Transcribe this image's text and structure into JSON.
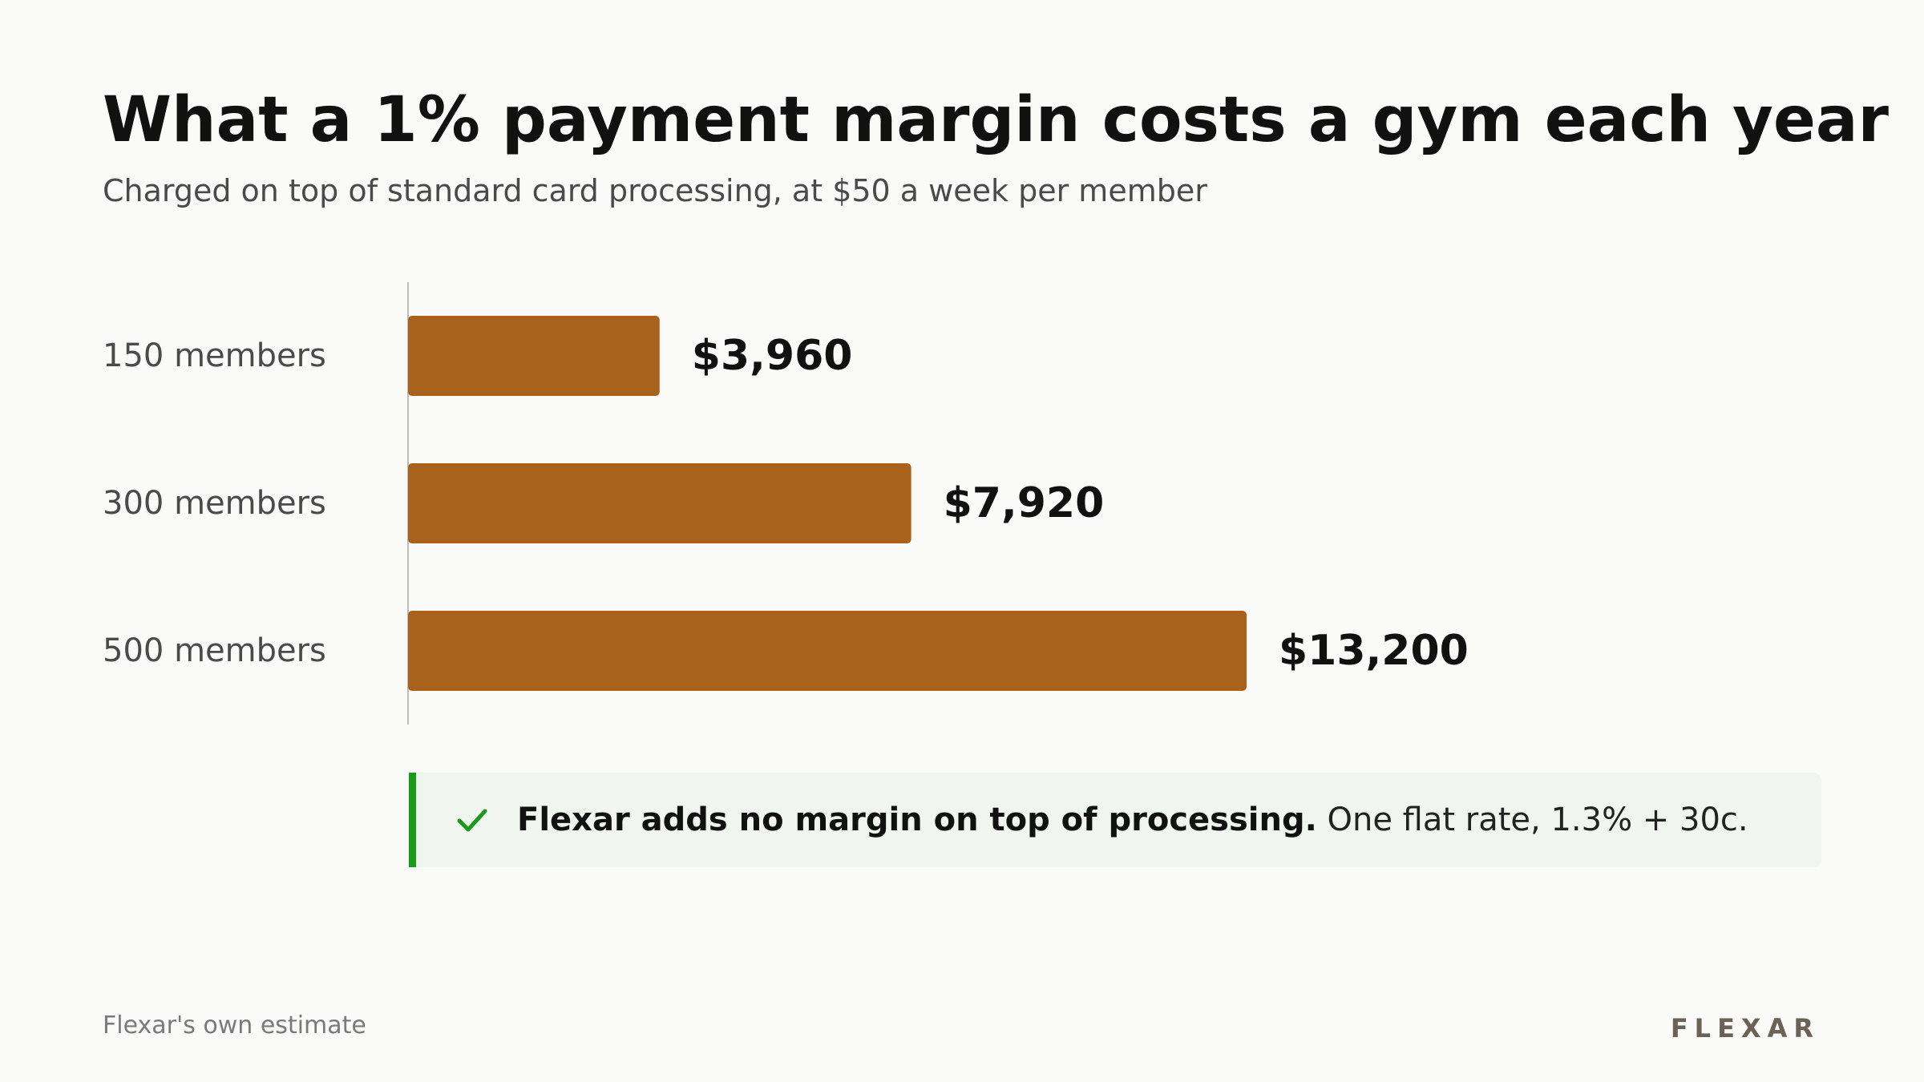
{
  "title": "What a 1% payment margin costs a gym each year",
  "subtitle": "Charged on top of standard card processing, at $50 a week per member",
  "chart_data": {
    "type": "bar",
    "orientation": "horizontal",
    "categories": [
      "150 members",
      "300 members",
      "500 members"
    ],
    "values": [
      3960,
      7920,
      13200
    ],
    "value_labels": [
      "$3,960",
      "$7,920",
      "$13,200"
    ],
    "bar_color": "#a8621b",
    "grid": false,
    "legend": "none"
  },
  "callout": {
    "strong": "Flexar adds no margin on top of processing.",
    "rest": "One flat rate, 1.3% + 30c.",
    "icon": "check-icon",
    "accent_color": "#1a9a1a"
  },
  "footer": {
    "source": "Flexar's own estimate",
    "brand": "FLEXAR"
  }
}
